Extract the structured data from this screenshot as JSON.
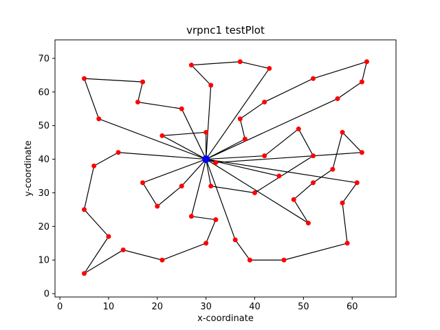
{
  "chart_data": {
    "type": "scatter",
    "title": "vrpnc1 testPlot",
    "xlabel": "x-coordinate",
    "ylabel": "y-coordinate",
    "xlim": [
      -1,
      69
    ],
    "ylim": [
      -1,
      75.5
    ],
    "xticks": [
      0,
      10,
      20,
      30,
      40,
      50,
      60
    ],
    "yticks": [
      0,
      10,
      20,
      30,
      40,
      50,
      60,
      70
    ],
    "grid": false,
    "depot": {
      "x": 30,
      "y": 40,
      "color": "#0000ff"
    },
    "customer_color": "#ff0000",
    "line_color": "#000000",
    "routes": [
      [
        [
          30,
          40
        ],
        [
          31,
          62
        ],
        [
          27,
          68
        ],
        [
          37,
          69
        ],
        [
          43,
          67
        ],
        [
          30,
          40
        ]
      ],
      [
        [
          30,
          40
        ],
        [
          38,
          46
        ],
        [
          37,
          52
        ],
        [
          42,
          57
        ],
        [
          52,
          64
        ],
        [
          63,
          69
        ],
        [
          62,
          63
        ],
        [
          57,
          58
        ],
        [
          30,
          40
        ]
      ],
      [
        [
          30,
          40
        ],
        [
          21,
          47
        ],
        [
          30,
          48
        ],
        [
          30,
          40
        ]
      ],
      [
        [
          30,
          40
        ],
        [
          8,
          52
        ],
        [
          5,
          64
        ],
        [
          17,
          63
        ],
        [
          16,
          57
        ],
        [
          25,
          55
        ],
        [
          30,
          40
        ]
      ],
      [
        [
          30,
          40
        ],
        [
          12,
          42
        ],
        [
          7,
          38
        ],
        [
          5,
          25
        ],
        [
          10,
          17
        ],
        [
          5,
          6
        ],
        [
          13,
          13
        ],
        [
          21,
          10
        ],
        [
          30,
          15
        ],
        [
          32,
          22
        ],
        [
          27,
          23
        ],
        [
          30,
          40
        ]
      ],
      [
        [
          30,
          40
        ],
        [
          17,
          33
        ],
        [
          20,
          26
        ],
        [
          25,
          32
        ],
        [
          30,
          40
        ]
      ],
      [
        [
          30,
          40
        ],
        [
          36,
          16
        ],
        [
          39,
          10
        ],
        [
          46,
          10
        ],
        [
          59,
          15
        ],
        [
          58,
          27
        ],
        [
          61,
          33
        ],
        [
          30,
          40
        ]
      ],
      [
        [
          30,
          40
        ],
        [
          31,
          32
        ],
        [
          40,
          30
        ],
        [
          52,
          41
        ],
        [
          49,
          49
        ],
        [
          42,
          41
        ],
        [
          30,
          40
        ]
      ],
      [
        [
          30,
          40
        ],
        [
          32,
          39
        ],
        [
          62,
          42
        ],
        [
          58,
          48
        ],
        [
          56,
          37
        ],
        [
          52,
          33
        ],
        [
          48,
          28
        ],
        [
          51,
          21
        ],
        [
          30,
          40
        ]
      ],
      [
        [
          30,
          40
        ],
        [
          45,
          35
        ],
        [
          30,
          40
        ]
      ]
    ]
  }
}
